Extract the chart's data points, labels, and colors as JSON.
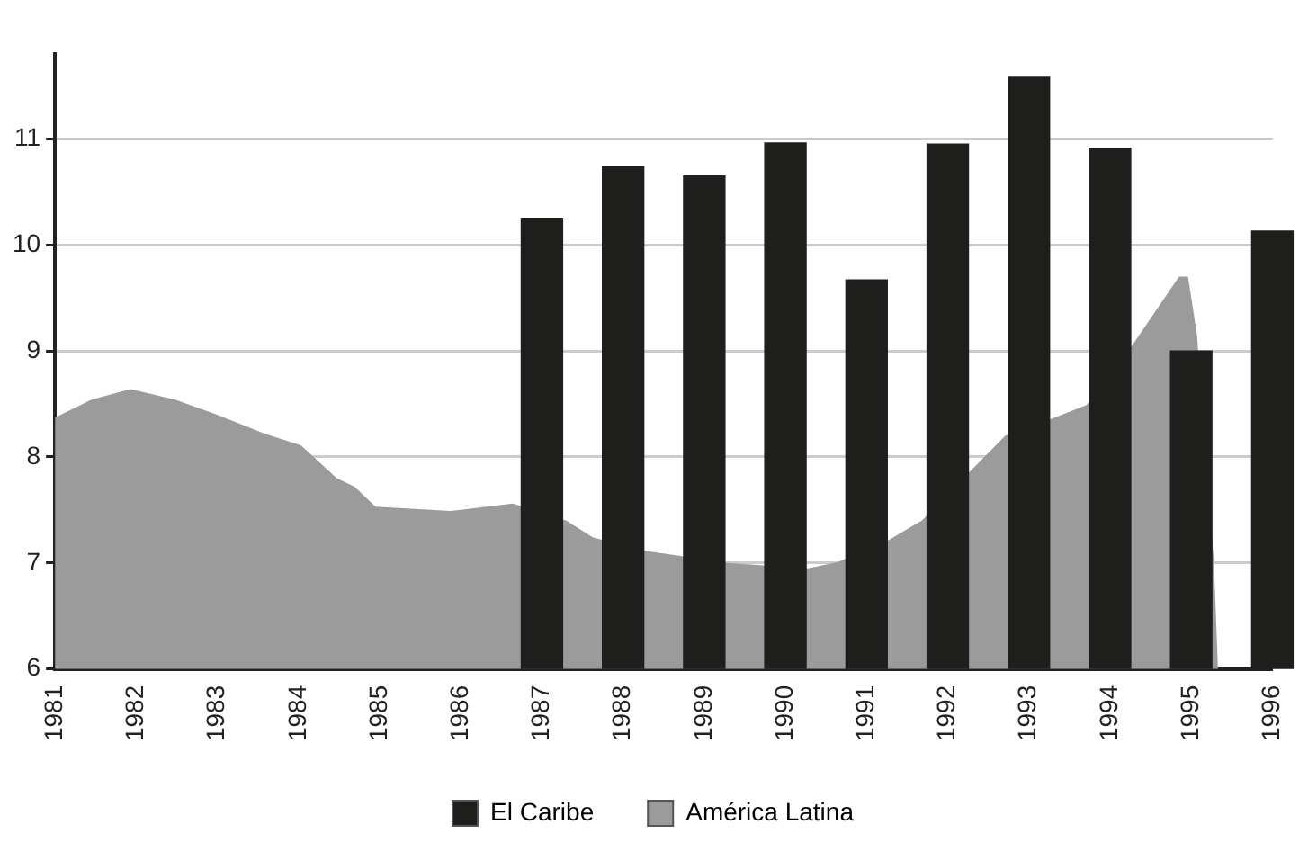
{
  "chart_data": {
    "type": "bar",
    "x": [
      1987,
      1988,
      1989,
      1990,
      1991,
      1992,
      1993,
      1994,
      1995,
      1996
    ],
    "series": [
      {
        "name": "El Caribe",
        "color": "#1e1e1c",
        "values": [
          10.25,
          10.74,
          10.65,
          10.96,
          9.67,
          10.95,
          11.58,
          10.91,
          9.0,
          10.13
        ]
      },
      {
        "name": "América Latina",
        "type": "area",
        "color": "#9b9b9b",
        "x": [
          1981,
          1981.45,
          1981.93,
          1982.48,
          1982.99,
          1983.58,
          1984.03,
          1984.47,
          1984.69,
          1984.95,
          1985.87,
          1986.64,
          1987.3,
          1987.63,
          1988.3,
          1988.67,
          1989.28,
          1990.28,
          1990.65,
          1991.28,
          1991.68,
          1992.27,
          1992.71,
          1993.28,
          1993.71,
          1994.28,
          1994.85,
          1994.96,
          1995.07,
          1995.28,
          1995.33
        ],
        "values": [
          8.37,
          8.54,
          8.64,
          8.54,
          8.4,
          8.22,
          8.11,
          7.8,
          7.72,
          7.53,
          7.49,
          7.56,
          7.4,
          7.24,
          7.11,
          7.07,
          7.0,
          6.95,
          7.01,
          7.22,
          7.4,
          7.86,
          8.2,
          8.36,
          8.49,
          9.06,
          9.7,
          9.7,
          9.16,
          7.0,
          6.0
        ]
      }
    ],
    "xlim": [
      1981,
      1996
    ],
    "xticks": [
      1981,
      1982,
      1983,
      1984,
      1985,
      1986,
      1987,
      1988,
      1989,
      1990,
      1991,
      1992,
      1993,
      1994,
      1995,
      1996
    ],
    "ylim": [
      6,
      11.8
    ],
    "yticks": [
      6,
      7,
      8,
      9,
      10,
      11
    ],
    "grid": "y",
    "legend": "bottom"
  }
}
